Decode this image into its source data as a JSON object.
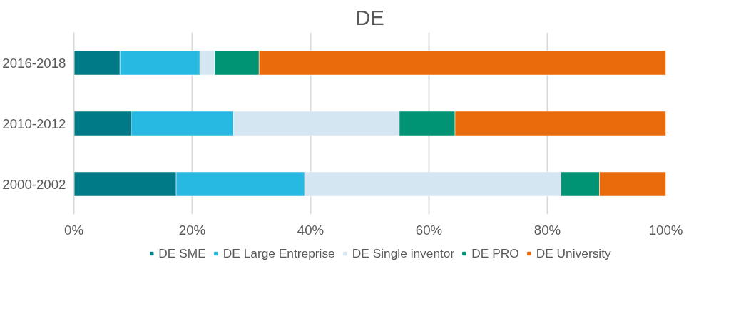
{
  "chart_data": {
    "type": "bar",
    "title": "DE",
    "orientation": "horizontal",
    "stacked": true,
    "categories": [
      "2016-2018",
      "2010-2012",
      "2000-2002"
    ],
    "series": [
      {
        "name": "DE SME",
        "color": "#007a87",
        "values": [
          7.8,
          9.7,
          17.3
        ]
      },
      {
        "name": "DE Large Entreprise",
        "color": "#27b9e2",
        "values": [
          13.5,
          17.3,
          21.7
        ]
      },
      {
        "name": "DE Single inventor",
        "color": "#d5e6f3",
        "values": [
          2.5,
          28.0,
          43.3
        ]
      },
      {
        "name": "DE PRO",
        "color": "#009374",
        "values": [
          7.5,
          9.4,
          6.5
        ]
      },
      {
        "name": "DE University",
        "color": "#ea6b0b",
        "values": [
          68.7,
          35.6,
          11.2
        ]
      }
    ],
    "xlim": [
      0,
      100
    ],
    "xticks": [
      {
        "value": 0,
        "label": "0%"
      },
      {
        "value": 20,
        "label": "20%"
      },
      {
        "value": 40,
        "label": "40%"
      },
      {
        "value": 60,
        "label": "60%"
      },
      {
        "value": 80,
        "label": "80%"
      },
      {
        "value": 100,
        "label": "100%"
      }
    ],
    "grid": "x",
    "legend": "bottom"
  }
}
